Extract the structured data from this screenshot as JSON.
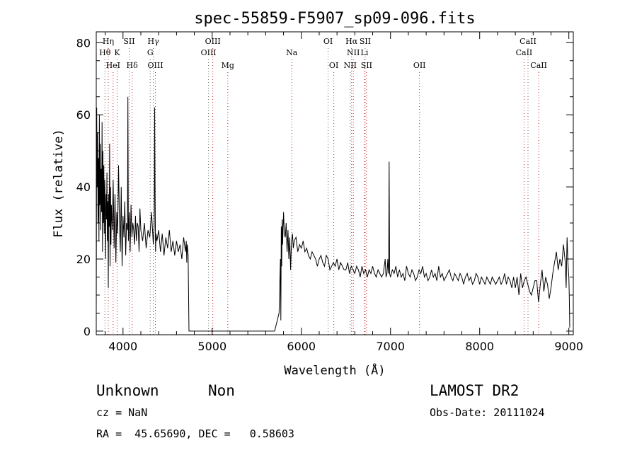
{
  "chart_data": {
    "type": "line",
    "title": "spec-55859-F5907_sp09-096.fits",
    "xlabel": "Wavelength (Å)",
    "ylabel": "Flux (relative)",
    "xlim": [
      3700,
      9050
    ],
    "ylim": [
      -1,
      83
    ],
    "xticks": [
      4000,
      5000,
      6000,
      7000,
      8000,
      9000
    ],
    "yticks": [
      0,
      20,
      40,
      60,
      80
    ],
    "grid": false,
    "series": [
      {
        "color": "#000000",
        "x": [
          3700,
          3705,
          3710,
          3715,
          3720,
          3725,
          3730,
          3735,
          3740,
          3745,
          3750,
          3755,
          3760,
          3765,
          3770,
          3775,
          3780,
          3785,
          3790,
          3795,
          3800,
          3805,
          3810,
          3815,
          3820,
          3825,
          3830,
          3835,
          3840,
          3845,
          3850,
          3855,
          3860,
          3865,
          3870,
          3880,
          3890,
          3900,
          3910,
          3920,
          3930,
          3940,
          3950,
          3960,
          3970,
          3980,
          3990,
          4000,
          4010,
          4020,
          4030,
          4040,
          4050,
          4055,
          4060,
          4070,
          4080,
          4090,
          4100,
          4110,
          4120,
          4130,
          4140,
          4150,
          4160,
          4170,
          4180,
          4190,
          4200,
          4220,
          4240,
          4260,
          4280,
          4300,
          4320,
          4340,
          4350,
          4355,
          4360,
          4365,
          4370,
          4380,
          4400,
          4420,
          4440,
          4460,
          4480,
          4500,
          4520,
          4540,
          4560,
          4580,
          4600,
          4620,
          4640,
          4660,
          4680,
          4700,
          4710,
          4715,
          4720,
          4725,
          4730,
          4740,
          4800,
          4900,
          5000,
          5100,
          5200,
          5300,
          5400,
          5500,
          5600,
          5700,
          5750,
          5765,
          5770,
          5775,
          5780,
          5785,
          5790,
          5800,
          5810,
          5820,
          5830,
          5840,
          5850,
          5860,
          5870,
          5880,
          5890,
          5900,
          5910,
          5920,
          5940,
          5960,
          5980,
          6000,
          6020,
          6040,
          6060,
          6080,
          6100,
          6120,
          6140,
          6160,
          6180,
          6200,
          6220,
          6240,
          6260,
          6280,
          6300,
          6320,
          6340,
          6360,
          6380,
          6400,
          6420,
          6440,
          6460,
          6480,
          6500,
          6520,
          6540,
          6560,
          6580,
          6600,
          6620,
          6640,
          6660,
          6680,
          6700,
          6720,
          6740,
          6760,
          6780,
          6800,
          6820,
          6840,
          6860,
          6880,
          6900,
          6920,
          6940,
          6950,
          6960,
          6970,
          6975,
          6980,
          6985,
          6990,
          7000,
          7020,
          7040,
          7060,
          7080,
          7100,
          7120,
          7140,
          7160,
          7180,
          7200,
          7220,
          7240,
          7260,
          7280,
          7300,
          7320,
          7340,
          7360,
          7380,
          7400,
          7420,
          7440,
          7460,
          7480,
          7500,
          7520,
          7540,
          7560,
          7580,
          7600,
          7620,
          7640,
          7660,
          7680,
          7700,
          7720,
          7740,
          7760,
          7780,
          7800,
          7820,
          7840,
          7860,
          7880,
          7900,
          7920,
          7940,
          7960,
          7980,
          8000,
          8020,
          8040,
          8060,
          8080,
          8100,
          8120,
          8140,
          8160,
          8180,
          8200,
          8220,
          8240,
          8260,
          8280,
          8300,
          8320,
          8340,
          8360,
          8380,
          8400,
          8420,
          8440,
          8460,
          8480,
          8500,
          8520,
          8540,
          8560,
          8580,
          8600,
          8620,
          8640,
          8660,
          8680,
          8700,
          8720,
          8740,
          8760,
          8780,
          8800,
          8820,
          8840,
          8860,
          8880,
          8900,
          8920,
          8940,
          8960,
          8970,
          8980,
          8990,
          9000,
          9005,
          9010
        ],
        "y": [
          5,
          62,
          40,
          55,
          30,
          48,
          25,
          60,
          35,
          52,
          28,
          45,
          33,
          58,
          22,
          50,
          30,
          46,
          27,
          42,
          35,
          20,
          38,
          31,
          44,
          25,
          36,
          12,
          38,
          29,
          52,
          18,
          40,
          24,
          35,
          28,
          42,
          23,
          38,
          19,
          33,
          27,
          46,
          30,
          22,
          40,
          18,
          32,
          26,
          36,
          21,
          30,
          28,
          65,
          25,
          33,
          22,
          35,
          26,
          30,
          28,
          24,
          32,
          25,
          30,
          29,
          22,
          34,
          28,
          25,
          30,
          23,
          28,
          26,
          33,
          24,
          29,
          62,
          38,
          22,
          27,
          25,
          28,
          22,
          27,
          21,
          26,
          23,
          28,
          22,
          25,
          21,
          25,
          22,
          24,
          20,
          26,
          22,
          25,
          19,
          24,
          23,
          21,
          0,
          0,
          0,
          0,
          0,
          0,
          0,
          0,
          0,
          0,
          0,
          5,
          20,
          3,
          29,
          18,
          31,
          24,
          33,
          27,
          26,
          30,
          22,
          28,
          20,
          26,
          17,
          25,
          27,
          23,
          25,
          26,
          22,
          24,
          23,
          25,
          22,
          23,
          21,
          20,
          22,
          21,
          20,
          18,
          20,
          21,
          19,
          18,
          21,
          20,
          17,
          18,
          19,
          18,
          20,
          17,
          19,
          18,
          17,
          17,
          19,
          16,
          18,
          17,
          16,
          18,
          17,
          15,
          18,
          16,
          17,
          15,
          17,
          16,
          18,
          16,
          15,
          17,
          16,
          15,
          16,
          20,
          15,
          16,
          20,
          16,
          18,
          47,
          16,
          15,
          17,
          16,
          18,
          15,
          17,
          15,
          16,
          14,
          18,
          16,
          15,
          17,
          16,
          14,
          15,
          17,
          16,
          18,
          15,
          16,
          14,
          15,
          17,
          15,
          16,
          14,
          18,
          15,
          16,
          14,
          15,
          16,
          17,
          15,
          14,
          16,
          15,
          14,
          16,
          15,
          13,
          15,
          16,
          14,
          15,
          13,
          14,
          16,
          15,
          13,
          15,
          14,
          13,
          15,
          14,
          13,
          15,
          14,
          13,
          14,
          15,
          13,
          14,
          16,
          13,
          15,
          14,
          12,
          15,
          12,
          15,
          10,
          16,
          12,
          14,
          15,
          13,
          11,
          10,
          12,
          14,
          14,
          8,
          13,
          17,
          11,
          15,
          13,
          9,
          12,
          16,
          19,
          22,
          17,
          20,
          18,
          24,
          19,
          12,
          26,
          19,
          15,
          10,
          1
        ]
      }
    ],
    "line_labels": [
      {
        "name": "Hη",
        "wavelength": 3835,
        "row": 0
      },
      {
        "name": "Hθ",
        "wavelength": 3797,
        "row": 1
      },
      {
        "name": "HeI",
        "wavelength": 3889,
        "row": 2
      },
      {
        "name": "K",
        "wavelength": 3934,
        "row": 1
      },
      {
        "name": "SII",
        "wavelength": 4069,
        "row": 0
      },
      {
        "name": "Hδ",
        "wavelength": 4102,
        "row": 2
      },
      {
        "name": "Hγ",
        "wavelength": 4340,
        "row": 0
      },
      {
        "name": "G",
        "wavelength": 4305,
        "row": 1
      },
      {
        "name": "OIII",
        "wavelength": 4363,
        "row": 2
      },
      {
        "name": "OIII",
        "wavelength": 5007,
        "row": 0
      },
      {
        "name": "OIII",
        "wavelength": 4959,
        "row": 1
      },
      {
        "name": "Mg",
        "wavelength": 5175,
        "row": 2
      },
      {
        "name": "Na",
        "wavelength": 5893,
        "row": 1
      },
      {
        "name": "OI",
        "wavelength": 6300,
        "row": 0
      },
      {
        "name": "OI",
        "wavelength": 6364,
        "row": 2
      },
      {
        "name": "Hα",
        "wavelength": 6563,
        "row": 0
      },
      {
        "name": "SII",
        "wavelength": 6716,
        "row": 0
      },
      {
        "name": "NII",
        "wavelength": 6583,
        "row": 1
      },
      {
        "name": "Li",
        "wavelength": 6708,
        "row": 1
      },
      {
        "name": "NII",
        "wavelength": 6548,
        "row": 2
      },
      {
        "name": "SII",
        "wavelength": 6731,
        "row": 2
      },
      {
        "name": "OII",
        "wavelength": 7325,
        "row": 2
      },
      {
        "name": "CaII",
        "wavelength": 8542,
        "row": 0
      },
      {
        "name": "CaII",
        "wavelength": 8498,
        "row": 1
      },
      {
        "name": "CaII",
        "wavelength": 8662,
        "row": 2
      }
    ]
  },
  "info": {
    "class_text": "Unknown",
    "subclass_text": "Non",
    "survey": "LAMOST DR2",
    "cz": "cz = NaN",
    "obs_date": "Obs-Date: 20111024",
    "coords": "RA =  45.65690, DEC =   0.58603"
  },
  "colors": {
    "line_marker": "#cc2222",
    "neutral_marker": "#666666",
    "spectrum": "#000000"
  }
}
